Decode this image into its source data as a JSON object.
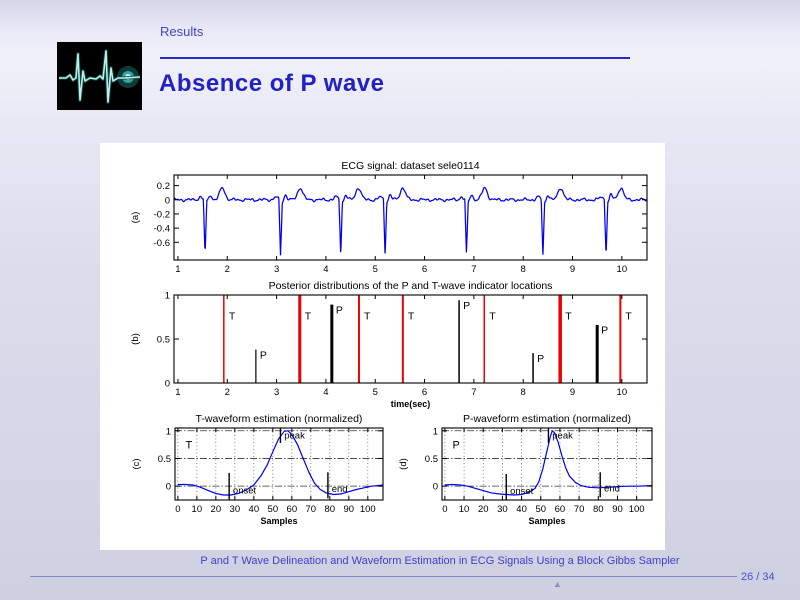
{
  "slide": {
    "header_label": "Results",
    "title": "Absence of P wave",
    "footer_title": "P and T Wave Delineation and Waveform Estimation in ECG Signals Using a Block Gibbs Sampler",
    "page_number": "26 / 34",
    "nav_glyph": "▲"
  },
  "colors": {
    "accent_blue": "#2121c4",
    "trace_blue": "#0000ee",
    "indicator_red": "#ee0000",
    "axis_black": "#000000"
  },
  "logo": {
    "name": "ecg-heartbeat-logo"
  },
  "chart_data": [
    {
      "id": "ecg_signal",
      "type": "line",
      "title": "ECG signal: dataset sele0114",
      "ylabel": "(a)",
      "xlim": [
        0.92,
        10.51
      ],
      "ylim": [
        -0.85,
        0.35
      ],
      "xticks": [
        1,
        2,
        3,
        4,
        5,
        6,
        7,
        8,
        9,
        10
      ],
      "yticks": [
        0.2,
        0,
        -0.2,
        -0.4,
        -0.6
      ],
      "qrs_times": [
        1.55,
        3.08,
        4.3,
        5.2,
        6.85,
        8.4,
        9.68
      ],
      "qrs_amplitude": -0.78,
      "t_wave_times": [
        1.9,
        3.48,
        4.66,
        5.56,
        7.22,
        8.76,
        9.98
      ],
      "t_wave_amplitude": 0.17
    },
    {
      "id": "posterior",
      "type": "stem",
      "title": "Posterior distributions of the P and T-wave indicator locations",
      "ylabel": "(b)",
      "xlabel": "time(sec)",
      "xlim": [
        0.92,
        10.51
      ],
      "ylim": [
        0,
        1
      ],
      "xticks": [
        1,
        2,
        3,
        4,
        5,
        6,
        7,
        8,
        9,
        10
      ],
      "yticks": [
        0,
        0.5,
        1
      ],
      "t_label": "T",
      "p_label": "P",
      "t_indicators": [
        {
          "x": 1.93,
          "h": 1.0,
          "w": 1.5
        },
        {
          "x": 3.47,
          "h": 1.0,
          "w": 3
        },
        {
          "x": 4.67,
          "h": 1.0,
          "w": 2
        },
        {
          "x": 5.56,
          "h": 1.0,
          "w": 2
        },
        {
          "x": 7.21,
          "h": 1.0,
          "w": 1.5
        },
        {
          "x": 8.75,
          "h": 1.0,
          "w": 3.5
        },
        {
          "x": 9.97,
          "h": 1.0,
          "w": 2
        }
      ],
      "p_indicators": [
        {
          "x": 2.58,
          "h": 0.38,
          "w": 1.2
        },
        {
          "x": 4.12,
          "h": 0.89,
          "w": 3
        },
        {
          "x": 6.7,
          "h": 0.94,
          "w": 1.5
        },
        {
          "x": 8.2,
          "h": 0.34,
          "w": 1.5
        },
        {
          "x": 9.5,
          "h": 0.66,
          "w": 3
        }
      ]
    },
    {
      "id": "t_waveform",
      "type": "line",
      "title": "T-waveform estimation (normalized)",
      "ylabel": "(c)",
      "xlabel": "Samples",
      "corner_label": "T",
      "xlim": [
        -1.5,
        108
      ],
      "ylim": [
        -0.25,
        1.05
      ],
      "xticks": [
        0,
        10,
        20,
        30,
        40,
        50,
        60,
        70,
        80,
        90,
        100
      ],
      "yticks": [
        0,
        0.5,
        1
      ],
      "grid": true,
      "curve": [
        [
          0,
          0.03
        ],
        [
          4,
          0.03
        ],
        [
          8,
          0.02
        ],
        [
          12,
          -0.02
        ],
        [
          16,
          -0.08
        ],
        [
          20,
          -0.13
        ],
        [
          24,
          -0.16
        ],
        [
          28,
          -0.16
        ],
        [
          32,
          -0.13
        ],
        [
          36,
          -0.07
        ],
        [
          40,
          0.02
        ],
        [
          44,
          0.2
        ],
        [
          47,
          0.38
        ],
        [
          50,
          0.62
        ],
        [
          53,
          0.85
        ],
        [
          56,
          0.99
        ],
        [
          58,
          1.0
        ],
        [
          60,
          0.93
        ],
        [
          63,
          0.75
        ],
        [
          66,
          0.5
        ],
        [
          69,
          0.25
        ],
        [
          72,
          0.05
        ],
        [
          75,
          -0.06
        ],
        [
          78,
          -0.12
        ],
        [
          82,
          -0.15
        ],
        [
          86,
          -0.14
        ],
        [
          90,
          -0.1
        ],
        [
          94,
          -0.06
        ],
        [
          98,
          -0.03
        ],
        [
          102,
          0.0
        ],
        [
          108,
          0.02
        ]
      ],
      "annotations": [
        {
          "x": 27,
          "y1": 0.24,
          "y2": -0.24,
          "label": "onset",
          "lx": 29,
          "ly": -0.13
        },
        {
          "x": 54,
          "y1": 1.04,
          "y2": 0.78,
          "label": "peak",
          "lx": 56,
          "ly": 0.86
        },
        {
          "x": 79,
          "y1": 0.25,
          "y2": -0.22,
          "label": "end",
          "lx": 81,
          "ly": -0.11
        }
      ]
    },
    {
      "id": "p_waveform",
      "type": "line",
      "title": "P-waveform estimation (normalized)",
      "ylabel": "(d)",
      "xlabel": "Samples",
      "corner_label": "P",
      "xlim": [
        -1.5,
        108
      ],
      "ylim": [
        -0.25,
        1.05
      ],
      "xticks": [
        0,
        10,
        20,
        30,
        40,
        50,
        60,
        70,
        80,
        90,
        100
      ],
      "yticks": [
        0,
        0.5,
        1
      ],
      "grid": true,
      "curve": [
        [
          0,
          0.02
        ],
        [
          4,
          0.03
        ],
        [
          8,
          0.02
        ],
        [
          12,
          0.0
        ],
        [
          16,
          -0.04
        ],
        [
          20,
          -0.08
        ],
        [
          24,
          -0.12
        ],
        [
          28,
          -0.14
        ],
        [
          32,
          -0.15
        ],
        [
          36,
          -0.16
        ],
        [
          40,
          -0.15
        ],
        [
          44,
          -0.11
        ],
        [
          47,
          -0.04
        ],
        [
          49,
          0.08
        ],
        [
          51,
          0.3
        ],
        [
          53,
          0.6
        ],
        [
          55,
          0.9
        ],
        [
          56,
          1.0
        ],
        [
          57,
          0.97
        ],
        [
          59,
          0.8
        ],
        [
          61,
          0.55
        ],
        [
          63,
          0.33
        ],
        [
          65,
          0.18
        ],
        [
          68,
          0.07
        ],
        [
          71,
          0.01
        ],
        [
          75,
          -0.02
        ],
        [
          80,
          -0.03
        ],
        [
          85,
          -0.02
        ],
        [
          90,
          -0.01
        ],
        [
          95,
          0.0
        ],
        [
          100,
          0.0
        ],
        [
          108,
          0.01
        ]
      ],
      "annotations": [
        {
          "x": 32,
          "y1": 0.22,
          "y2": -0.25,
          "label": "onset",
          "lx": 34,
          "ly": -0.14
        },
        {
          "x": 54,
          "y1": 1.04,
          "y2": 0.78,
          "label": "peak",
          "lx": 56,
          "ly": 0.86
        },
        {
          "x": 81,
          "y1": 0.25,
          "y2": -0.2,
          "label": "end",
          "lx": 83,
          "ly": -0.1
        }
      ]
    }
  ]
}
